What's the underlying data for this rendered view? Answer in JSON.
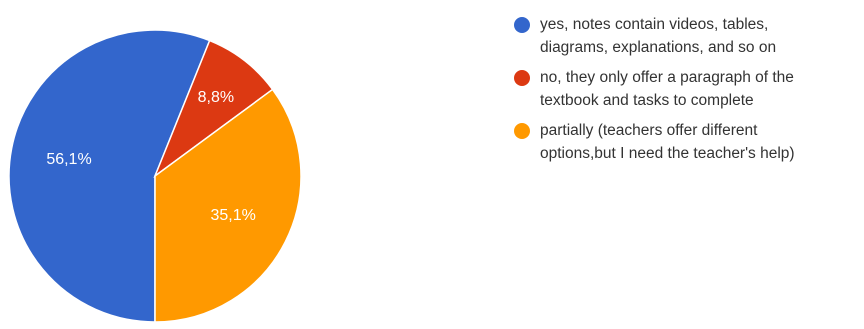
{
  "chart_data": {
    "type": "pie",
    "title": "",
    "start_angle_deg": 90,
    "direction": "clockwise",
    "slices": [
      {
        "label": "yes, notes contain videos, tables, diagrams, explanations, and so on",
        "value": 56.1,
        "data_label": "56,1%",
        "color": "#3366cc"
      },
      {
        "label": "no, they only offer a paragraph of the textbook and tasks to complete",
        "value": 8.8,
        "data_label": "8,8%",
        "color": "#dc3912"
      },
      {
        "label": "partially (teachers offer different options,but I need the teacher's help)",
        "value": 35.1,
        "data_label": "35,1%",
        "color": "#ff9900"
      }
    ],
    "legend": {
      "position": "right",
      "items": [
        {
          "line1": "yes, notes contain videos, tables,",
          "line2": "diagrams, explanations, and so on",
          "color": "#3366cc"
        },
        {
          "line1": "no, they only offer a paragraph of the",
          "line2": "textbook and tasks to complete",
          "color": "#dc3912"
        },
        {
          "line1": "partially (teachers offer different",
          "line2": "options,but I need the teacher's help)",
          "color": "#ff9900"
        }
      ]
    }
  }
}
